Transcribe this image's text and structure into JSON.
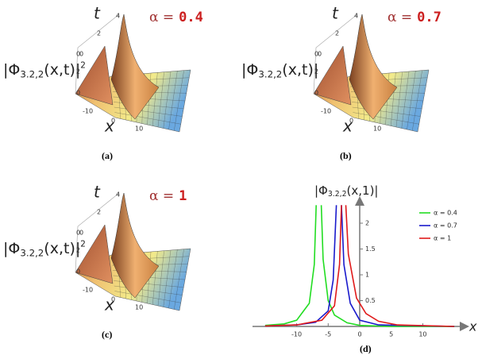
{
  "panels": [
    {
      "caption": "(a)",
      "alpha_label": "α =",
      "alpha_value": "0.4",
      "z_label": {
        "main": "|Φ",
        "sub": "3.2,2",
        "tail": "(x,t)|",
        "sup": "2"
      },
      "t_label": "t",
      "x_label": "x",
      "t_ticks": [
        "4",
        "2",
        "0"
      ],
      "z_ticks": [
        "0",
        "2",
        "0"
      ],
      "x_ticks": [
        "-10",
        "0",
        "10"
      ]
    },
    {
      "caption": "(b)",
      "alpha_label": "α =",
      "alpha_value": "0.7",
      "z_label": {
        "main": "|Φ",
        "sub": "3.2,2",
        "tail": "(x,t)|"
      },
      "t_label": "t",
      "x_label": "x",
      "t_ticks": [
        "4",
        "2",
        "0"
      ],
      "z_ticks": [
        "0",
        "2",
        "0"
      ],
      "x_ticks": [
        "-10",
        "0",
        "10"
      ]
    },
    {
      "caption": "(c)",
      "alpha_label": "α =",
      "alpha_value": "1",
      "z_label": {
        "main": "|Φ",
        "sub": "3.2,2",
        "tail": "(x,t)|",
        "sup": "2"
      },
      "t_label": "t",
      "x_label": "x",
      "t_ticks": [
        "4",
        "2",
        "0"
      ],
      "z_ticks": [
        "0",
        "2",
        "0"
      ],
      "x_ticks": [
        "-10",
        "0",
        "10"
      ]
    }
  ],
  "chart_data": {
    "type": "line",
    "caption": "(d)",
    "y_label": {
      "main": "|Φ",
      "sub": "3.2,2",
      "tail": "(x,1)|"
    },
    "x_label": "x",
    "xlim": [
      -17,
      17
    ],
    "ylim": [
      0,
      2.4
    ],
    "xticks": [
      -10,
      -5,
      0,
      5,
      10
    ],
    "yticks": [
      0.5,
      1.0,
      1.5,
      2.0
    ],
    "legend": "top-right",
    "series": [
      {
        "name": "α = 0.4",
        "color": "#22dd22",
        "x": [
          -15,
          -12,
          -10,
          -8,
          -7.2,
          -6.9,
          -6.5,
          -6.1,
          -5.8,
          -5,
          -4,
          -2,
          0,
          5,
          15
        ],
        "values": [
          0.02,
          0.05,
          0.12,
          0.45,
          1.2,
          2.35,
          null,
          2.35,
          1.3,
          0.5,
          0.22,
          0.07,
          0.02,
          0,
          0
        ]
      },
      {
        "name": "α = 0.7",
        "color": "#1a1acc",
        "x": [
          -15,
          -10,
          -7,
          -5,
          -4.2,
          -3.7,
          -3.3,
          -2.9,
          -2.5,
          -1.5,
          0,
          3,
          15
        ],
        "values": [
          0.01,
          0.03,
          0.08,
          0.3,
          0.9,
          2.35,
          null,
          2.35,
          1.2,
          0.45,
          0.12,
          0.03,
          0
        ]
      },
      {
        "name": "α = 1",
        "color": "#e01a1a",
        "x": [
          -15,
          -10,
          -6,
          -4,
          -3.2,
          -2.9,
          -2.6,
          -2.2,
          -1.8,
          -0.5,
          1,
          3,
          6,
          15
        ],
        "values": [
          0.01,
          0.03,
          0.12,
          0.4,
          1.2,
          2.35,
          null,
          2.35,
          1.4,
          0.55,
          0.25,
          0.1,
          0.03,
          0
        ]
      }
    ]
  }
}
